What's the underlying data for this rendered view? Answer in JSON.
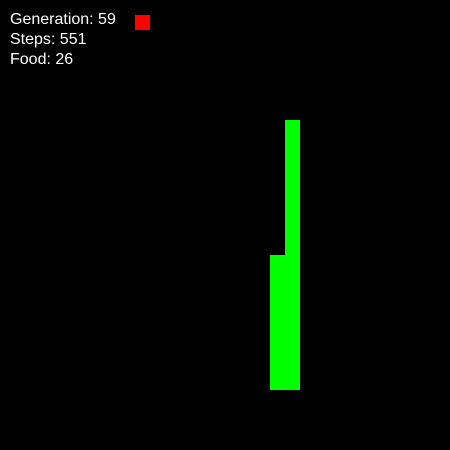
{
  "hud": {
    "generation": "Generation: 59",
    "steps": "Steps: 551",
    "food": "Food: 26"
  },
  "colors": {
    "background": "#000000",
    "snake": "#00ff00",
    "food": "#ff0000",
    "text": "#ffffff"
  }
}
